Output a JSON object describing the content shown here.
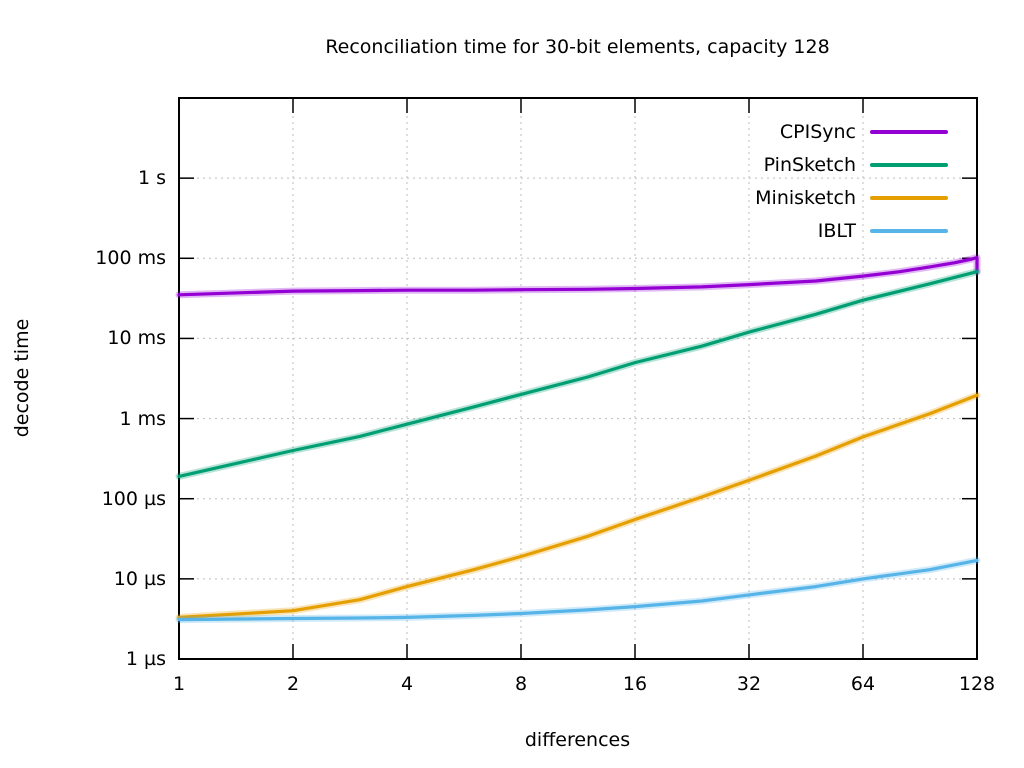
{
  "chart_data": {
    "type": "line",
    "title": "Reconciliation time for 30-bit elements, capacity 128",
    "xlabel": "differences",
    "ylabel": "decode time",
    "x_scale": "log2",
    "y_scale": "log10",
    "xlim": [
      1,
      128
    ],
    "ylim_seconds": [
      1e-06,
      10
    ],
    "grid": true,
    "legend_position": "inside-top-right",
    "x_ticks": [
      1,
      2,
      4,
      8,
      16,
      32,
      64,
      128
    ],
    "x_tick_labels": [
      "1",
      "2",
      "4",
      "8",
      "16",
      "32",
      "64",
      "128"
    ],
    "y_ticks_seconds": [
      1,
      0.1,
      0.01,
      0.001,
      0.0001,
      1e-05,
      1e-06
    ],
    "y_tick_labels": [
      "1 s",
      "100 ms",
      "10 ms",
      "1 ms",
      "100 µs",
      "10 µs",
      "1 µs"
    ],
    "series": [
      {
        "name": "CPISync",
        "color": "#9400d3",
        "points_x_seconds": [
          [
            1,
            0.035
          ],
          [
            2,
            0.039
          ],
          [
            3,
            0.0395
          ],
          [
            4,
            0.04
          ],
          [
            6,
            0.04
          ],
          [
            8,
            0.0405
          ],
          [
            12,
            0.041
          ],
          [
            16,
            0.042
          ],
          [
            24,
            0.044
          ],
          [
            32,
            0.047
          ],
          [
            48,
            0.052
          ],
          [
            64,
            0.06
          ],
          [
            80,
            0.068
          ],
          [
            96,
            0.078
          ],
          [
            112,
            0.088
          ],
          [
            124,
            0.098
          ],
          [
            127,
            0.101
          ],
          [
            128,
            0.102
          ],
          [
            128,
            0.068
          ]
        ]
      },
      {
        "name": "PinSketch",
        "color": "#009e73",
        "points_x_seconds": [
          [
            1,
            0.00019
          ],
          [
            2,
            0.0004
          ],
          [
            3,
            0.0006
          ],
          [
            4,
            0.00085
          ],
          [
            6,
            0.0014
          ],
          [
            8,
            0.002
          ],
          [
            12,
            0.0033
          ],
          [
            16,
            0.005
          ],
          [
            24,
            0.008
          ],
          [
            32,
            0.012
          ],
          [
            48,
            0.02
          ],
          [
            64,
            0.03
          ],
          [
            96,
            0.048
          ],
          [
            128,
            0.068
          ]
        ]
      },
      {
        "name": "Minisketch",
        "color": "#e69f00",
        "points_x_seconds": [
          [
            1,
            3.3e-06
          ],
          [
            2,
            4e-06
          ],
          [
            3,
            5.5e-06
          ],
          [
            4,
            8e-06
          ],
          [
            6,
            1.3e-05
          ],
          [
            8,
            1.9e-05
          ],
          [
            12,
            3.4e-05
          ],
          [
            16,
            5.5e-05
          ],
          [
            24,
            0.000105
          ],
          [
            32,
            0.00017
          ],
          [
            48,
            0.00034
          ],
          [
            64,
            0.00059
          ],
          [
            96,
            0.00115
          ],
          [
            128,
            0.00195
          ]
        ]
      },
      {
        "name": "IBLT",
        "color": "#56b4e9",
        "points_x_seconds": [
          [
            1,
            3.1e-06
          ],
          [
            2,
            3.2e-06
          ],
          [
            3,
            3.25e-06
          ],
          [
            4,
            3.3e-06
          ],
          [
            6,
            3.5e-06
          ],
          [
            8,
            3.7e-06
          ],
          [
            12,
            4.1e-06
          ],
          [
            16,
            4.5e-06
          ],
          [
            24,
            5.3e-06
          ],
          [
            32,
            6.3e-06
          ],
          [
            48,
            8e-06
          ],
          [
            64,
            1e-05
          ],
          [
            96,
            1.3e-05
          ],
          [
            128,
            1.7e-05
          ]
        ]
      }
    ]
  }
}
